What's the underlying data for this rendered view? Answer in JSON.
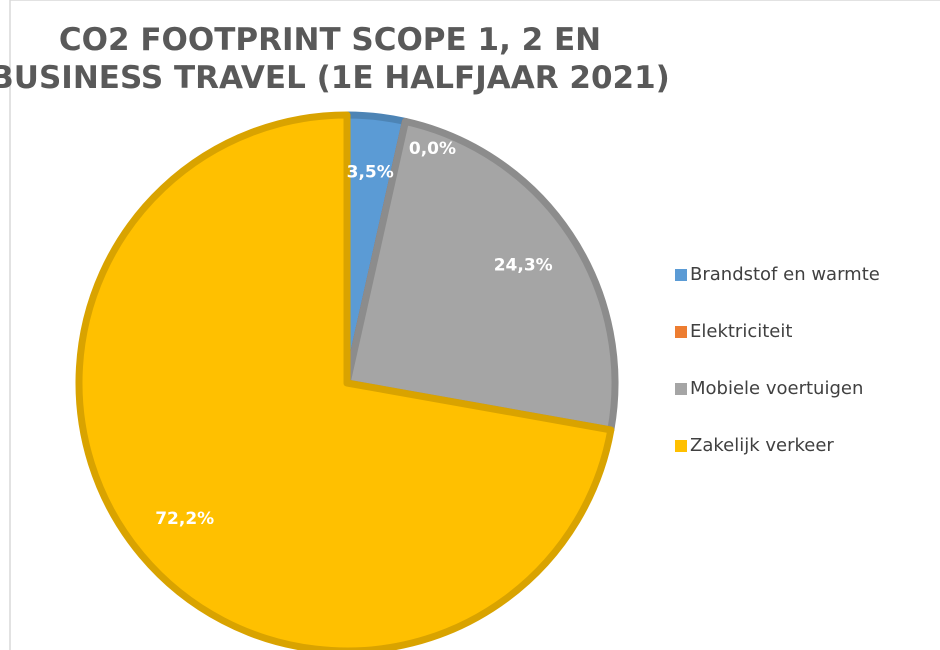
{
  "chart_data": {
    "type": "pie",
    "title": [
      "CO2 FOOTPRINT SCOPE 1, 2 EN",
      "BUSINESS TRAVEL (1E HALFJAAR 2021)"
    ],
    "categories": [
      "Brandstof en warmte",
      "Elektriciteit",
      "Mobiele voertuigen",
      "Zakelijk verkeer"
    ],
    "values": [
      3.5,
      0.0,
      24.3,
      72.2
    ],
    "value_labels": [
      "3,5%",
      "0,0%",
      "24,3%",
      "72,2%"
    ],
    "colors": [
      "#5b9bd5",
      "#ed7d31",
      "#a5a5a5",
      "#ffc000"
    ],
    "legend": "right"
  }
}
